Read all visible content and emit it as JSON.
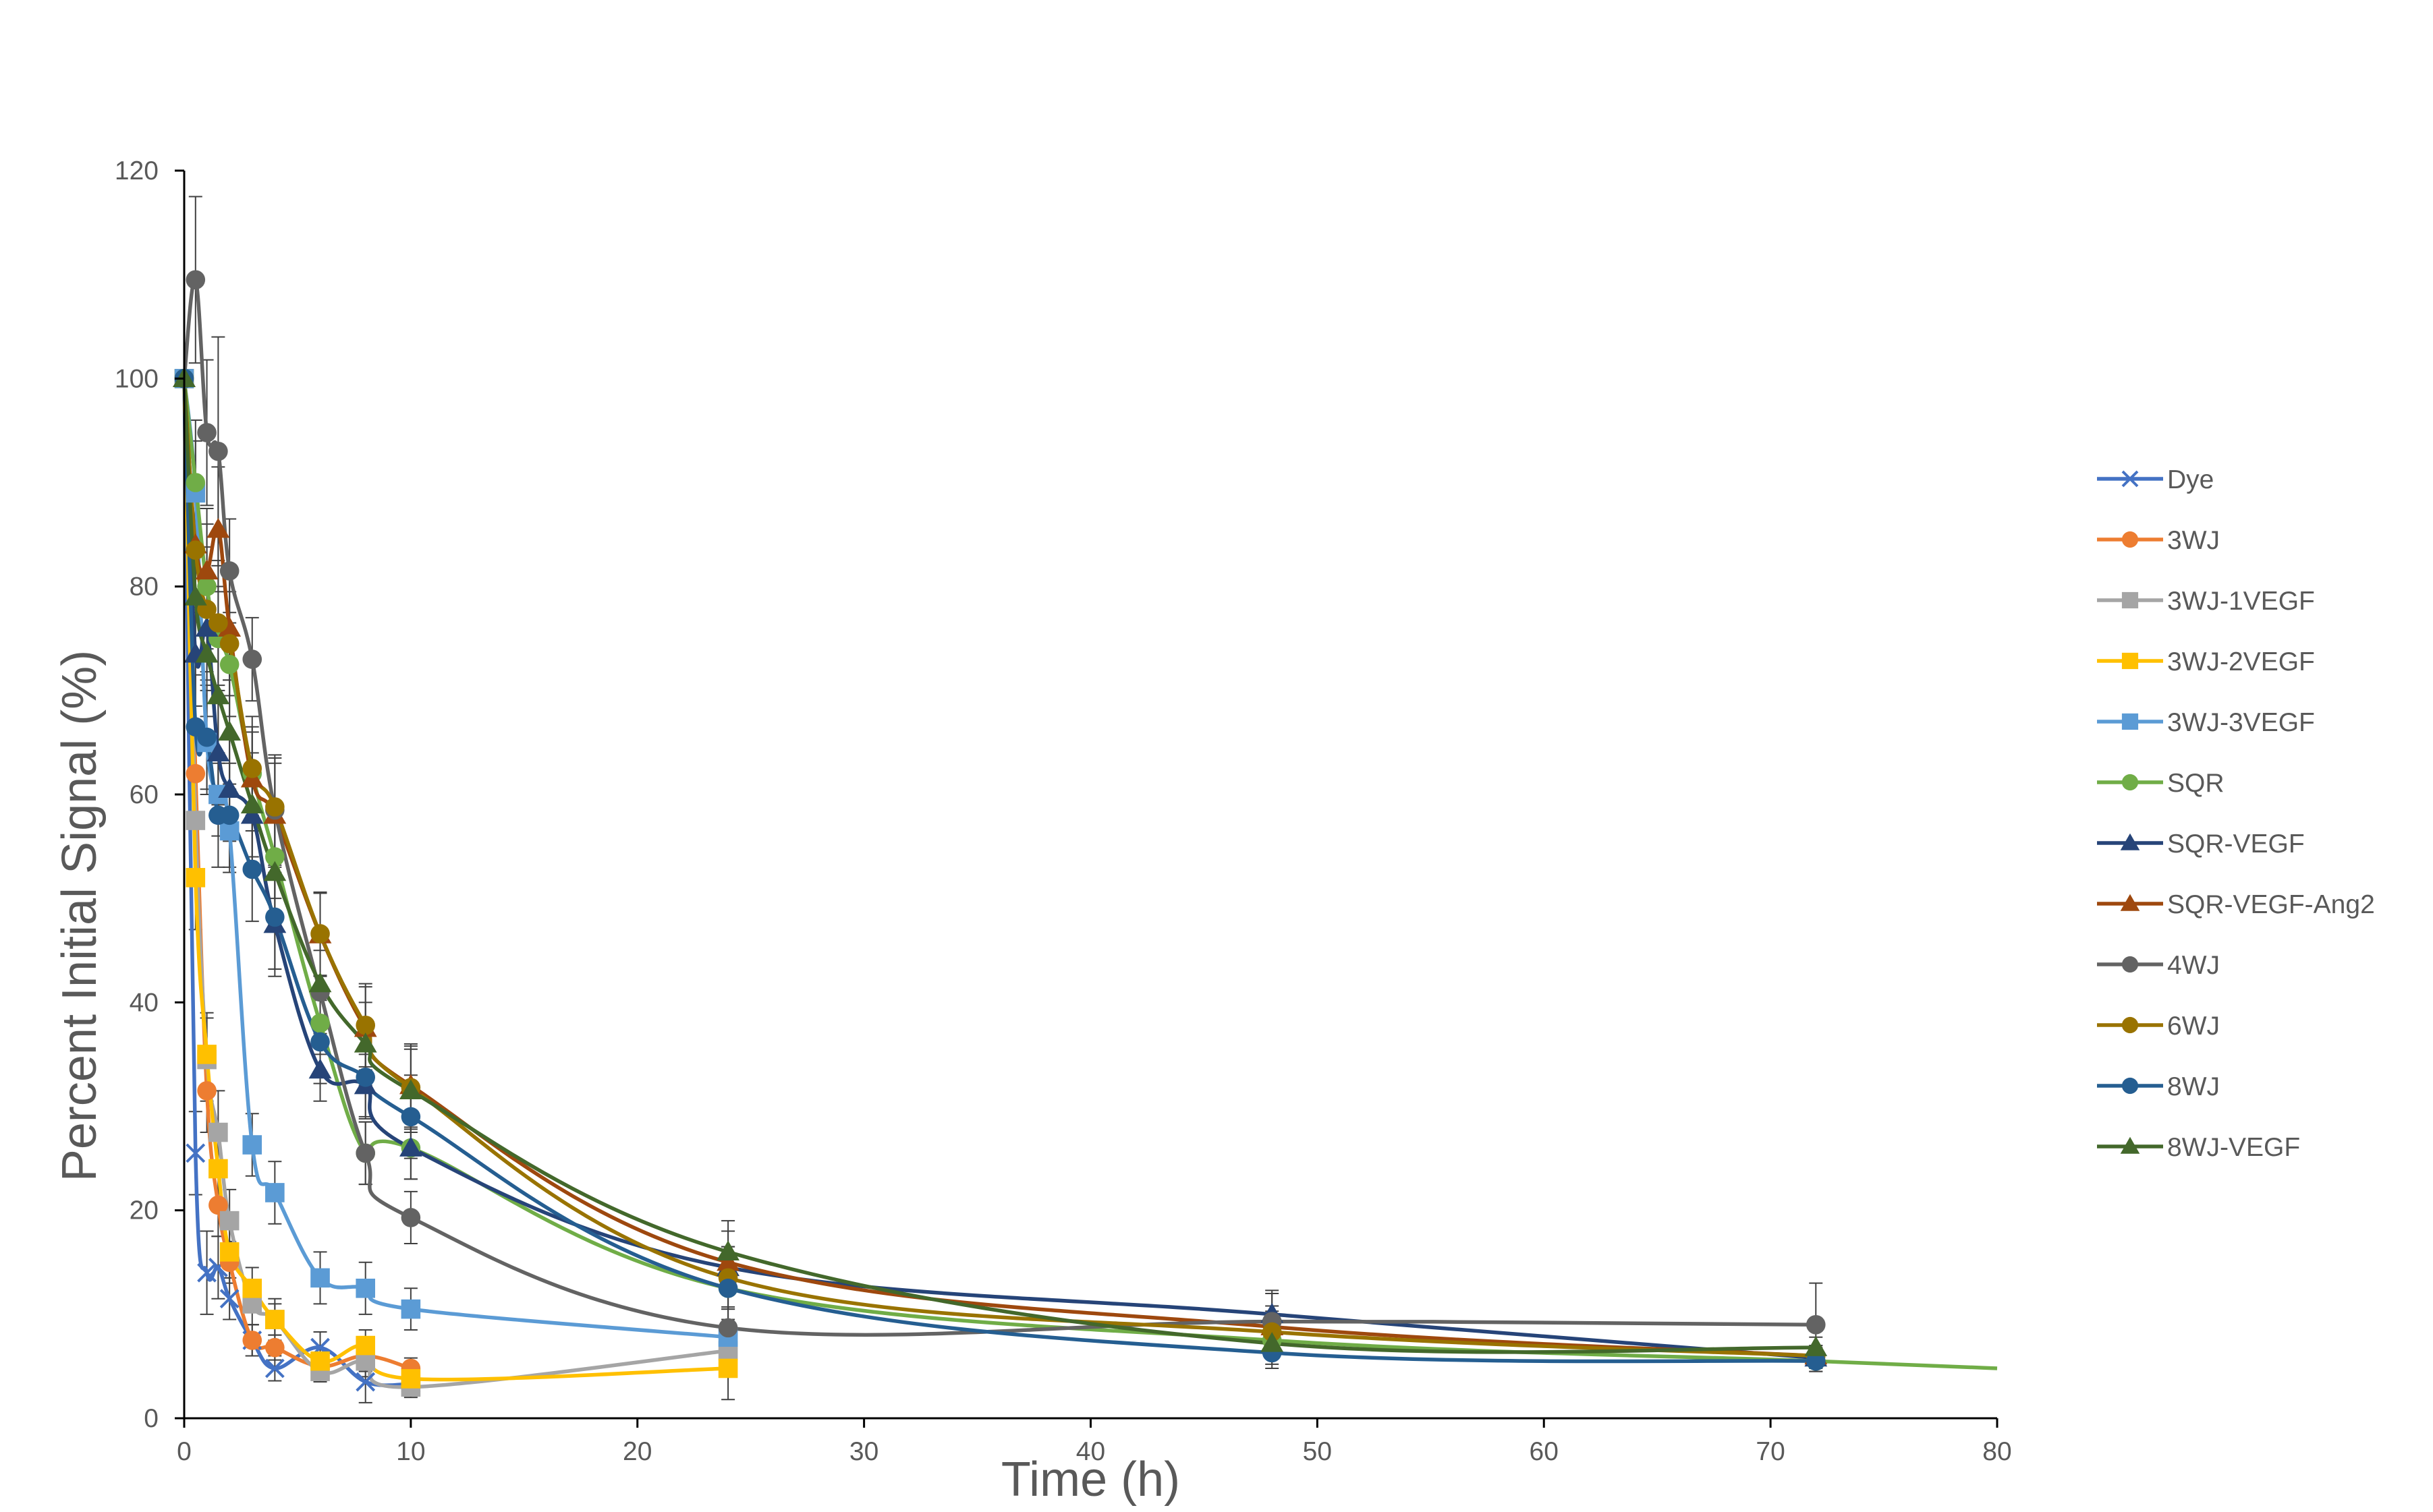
{
  "chart_data": {
    "type": "line",
    "title": "",
    "xlabel": "Time (h)",
    "ylabel": "Percent Initial Signal (%)",
    "xlim": [
      0,
      80
    ],
    "ylim": [
      0,
      120
    ],
    "xticks": [
      0,
      10,
      20,
      30,
      40,
      50,
      60,
      70,
      80
    ],
    "yticks": [
      0,
      20,
      40,
      60,
      80,
      100,
      120
    ],
    "grid": false,
    "legend": "right",
    "series": [
      {
        "name": "Dye",
        "color": "#4472C4",
        "marker": "x",
        "x": [
          0,
          0.5,
          1,
          1.5,
          2,
          3,
          4,
          6,
          8,
          10
        ],
        "y": [
          100,
          25.5,
          14,
          14.5,
          11.5,
          7.5,
          4.8,
          6.8,
          3.5,
          3.3
        ],
        "err": [
          0,
          4,
          4,
          3,
          2,
          1.5,
          1.2,
          1.5,
          2,
          1
        ]
      },
      {
        "name": "3WJ",
        "color": "#ED7D31",
        "marker": "circle",
        "x": [
          0,
          0.5,
          1,
          1.5,
          2,
          3,
          4,
          6,
          8,
          10
        ],
        "y": [
          100,
          62,
          31.5,
          20.5,
          15,
          7.5,
          6.8,
          5,
          6,
          4.8
        ],
        "err": [
          0,
          5,
          4,
          3,
          2,
          1.5,
          1.2,
          1,
          1.5,
          1
        ]
      },
      {
        "name": "3WJ-1VEGF",
        "color": "#A5A5A5",
        "marker": "square",
        "x": [
          0,
          0.5,
          1,
          1.5,
          2,
          3,
          4,
          6,
          8,
          10,
          24
        ],
        "y": [
          100,
          57.5,
          34.5,
          27.5,
          19,
          11,
          9.5,
          4.5,
          5.5,
          3,
          6.5
        ],
        "err": [
          0,
          5,
          4,
          4,
          3,
          2,
          2,
          1,
          1.5,
          1,
          1
        ]
      },
      {
        "name": "3WJ-2VEGF",
        "color": "#FFC000",
        "marker": "square",
        "x": [
          0,
          0.5,
          1,
          1.5,
          2,
          3,
          4,
          6,
          8,
          10,
          24
        ],
        "y": [
          100,
          52,
          35,
          24,
          16,
          12.5,
          9.5,
          5.5,
          7,
          3.8,
          4.8
        ],
        "err": [
          0,
          5,
          4,
          3,
          2.5,
          2,
          1.5,
          1.2,
          1.5,
          1,
          3
        ]
      },
      {
        "name": "3WJ-3VEGF",
        "color": "#5B9BD5",
        "marker": "square",
        "x": [
          0,
          0.5,
          1,
          1.5,
          2,
          3,
          4,
          6,
          8,
          10,
          24
        ],
        "y": [
          100,
          89,
          65,
          60,
          56.5,
          26.3,
          21.7,
          13.5,
          12.5,
          10.5,
          7.8
        ],
        "err": [
          0,
          5,
          5,
          4,
          4,
          3,
          3,
          2.5,
          2.5,
          2,
          1
        ]
      },
      {
        "name": "SQR",
        "color": "#70AD47",
        "marker": "circle",
        "x": [
          0,
          0.5,
          1,
          1.5,
          2,
          3,
          4,
          6,
          8,
          10,
          24,
          48,
          72,
          80
        ],
        "y": [
          100,
          90,
          80,
          75,
          72.5,
          62,
          54,
          38,
          25.5,
          26,
          12.5,
          7.5,
          5.5,
          4.8
        ],
        "err": [
          0,
          6,
          6,
          5,
          5,
          4,
          4,
          3,
          3,
          3,
          2,
          1.5,
          1,
          0
        ]
      },
      {
        "name": "SQR-VEGF",
        "color": "#264478",
        "marker": "triangle",
        "x": [
          0,
          0.5,
          1,
          1.5,
          2,
          3,
          4,
          6,
          8,
          10,
          24,
          48,
          72
        ],
        "y": [
          100,
          73.5,
          76,
          64,
          60.5,
          58,
          47.5,
          33.5,
          32,
          26,
          14.5,
          10,
          5.8
        ],
        "err": [
          0,
          5,
          5,
          5,
          5,
          5,
          5,
          3,
          3,
          3,
          2,
          2,
          1
        ]
      },
      {
        "name": "SQR-VEGF-Ang2",
        "color": "#9E480E",
        "marker": "triangle",
        "x": [
          0,
          0.5,
          1,
          1.5,
          2,
          3,
          4,
          6,
          8,
          10,
          24,
          48,
          72
        ],
        "y": [
          100,
          84,
          81.5,
          85.5,
          76,
          61.5,
          58,
          46.5,
          37.5,
          32,
          15,
          8.8,
          6
        ],
        "err": [
          0,
          6,
          6,
          6,
          5,
          5,
          5,
          4,
          4,
          4,
          3,
          2,
          1
        ]
      },
      {
        "name": "4WJ",
        "color": "#636363",
        "marker": "circle",
        "x": [
          0,
          0.5,
          1,
          1.5,
          2,
          3,
          4,
          6,
          8,
          10,
          24,
          48,
          72
        ],
        "y": [
          100,
          109.5,
          94.8,
          93,
          81.5,
          73,
          58.5,
          41,
          25.5,
          19.3,
          8.7,
          9.3,
          9
        ],
        "err": [
          0,
          8,
          7,
          11,
          5,
          4,
          5,
          4,
          3,
          2.5,
          2,
          3,
          4
        ]
      },
      {
        "name": "6WJ",
        "color": "#997300",
        "marker": "circle",
        "x": [
          0,
          0.5,
          1,
          1.5,
          2,
          3,
          4,
          6,
          8,
          10,
          24,
          48,
          72
        ],
        "y": [
          100,
          83.5,
          77.8,
          76.5,
          74.5,
          62.5,
          58.8,
          46.6,
          37.8,
          31.8,
          13.5,
          8.3,
          6
        ],
        "err": [
          0,
          6,
          6,
          6,
          5,
          5,
          5,
          4,
          4,
          4,
          3,
          2,
          1
        ]
      },
      {
        "name": "8WJ",
        "color": "#255E91",
        "marker": "circle",
        "x": [
          0,
          0.5,
          1,
          1.5,
          2,
          3,
          4,
          6,
          8,
          10,
          24,
          48,
          72
        ],
        "y": [
          100,
          66.5,
          65.5,
          58,
          58,
          52.8,
          48.2,
          36.2,
          32.8,
          29,
          12.5,
          6.3,
          5.5
        ],
        "err": [
          0,
          5,
          5,
          5,
          5,
          5,
          5,
          4,
          4,
          4,
          3,
          1.5,
          1
        ]
      },
      {
        "name": "8WJ-VEGF",
        "color": "#43682B",
        "marker": "triangle",
        "x": [
          0,
          0.5,
          1,
          1.5,
          2,
          3,
          4,
          6,
          8,
          10,
          24,
          48,
          72
        ],
        "y": [
          100,
          79,
          73.5,
          69.5,
          66,
          59,
          52.5,
          41.8,
          36,
          31.5,
          16,
          7.2,
          6.8
        ],
        "err": [
          0,
          6,
          6,
          6,
          5,
          5,
          5,
          4,
          4,
          4,
          3,
          2,
          1
        ]
      }
    ]
  }
}
